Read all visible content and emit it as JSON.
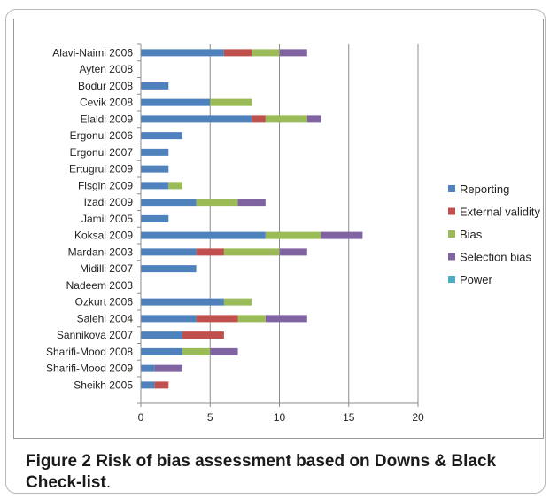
{
  "chart_data": {
    "type": "bar",
    "orientation": "horizontal",
    "stacked": true,
    "title": "",
    "xlabel": "",
    "ylabel": "",
    "xlim": [
      0,
      20
    ],
    "xticks": [
      0,
      5,
      10,
      15,
      20
    ],
    "grid": "vertical",
    "legend_position": "right",
    "categories": [
      "Alavi-Naimi 2006",
      "Ayten 2008",
      "Bodur 2008",
      "Cevik 2008",
      "Elaldi 2009",
      "Ergonul 2006",
      "Ergonul 2007",
      "Ertugrul 2009",
      "Fisgin 2009",
      "Izadi 2009",
      "Jamil 2005",
      "Koksal 2009",
      "Mardani 2003",
      "Midilli 2007",
      "Nadeem 2003",
      "Ozkurt 2006",
      "Salehi 2004",
      "Sannikova 2007",
      "Sharifi-Mood 2008",
      "Sharifi-Mood 2009",
      "Sheikh 2005"
    ],
    "series": [
      {
        "name": "Reporting",
        "color": "#4f81bd",
        "values": [
          6,
          0,
          2,
          5,
          8,
          3,
          2,
          2,
          2,
          4,
          2,
          9,
          4,
          4,
          0,
          6,
          4,
          3,
          3,
          1,
          1
        ]
      },
      {
        "name": "External validity",
        "color": "#c0504d",
        "values": [
          2,
          0,
          0,
          0,
          1,
          0,
          0,
          0,
          0,
          0,
          0,
          0,
          2,
          0,
          0,
          0,
          3,
          3,
          0,
          0,
          1
        ]
      },
      {
        "name": "Bias",
        "color": "#9bbb59",
        "values": [
          2,
          0,
          0,
          3,
          3,
          0,
          0,
          0,
          1,
          3,
          0,
          4,
          4,
          0,
          0,
          2,
          2,
          0,
          2,
          0,
          0
        ]
      },
      {
        "name": "Selection bias",
        "color": "#8064a2",
        "values": [
          2,
          0,
          0,
          0,
          1,
          0,
          0,
          0,
          0,
          2,
          0,
          3,
          2,
          0,
          0,
          0,
          3,
          0,
          2,
          2,
          0
        ]
      },
      {
        "name": "Power",
        "color": "#4bacc6",
        "values": [
          0,
          0,
          0,
          0,
          0,
          0,
          0,
          0,
          0,
          0,
          0,
          0,
          0,
          0,
          0,
          0,
          0,
          0,
          0,
          0,
          0
        ]
      }
    ]
  },
  "caption": {
    "label": "Figure 2",
    "title": "Risk of bias assessment based on Downs & Black Check-list",
    "end": "."
  }
}
